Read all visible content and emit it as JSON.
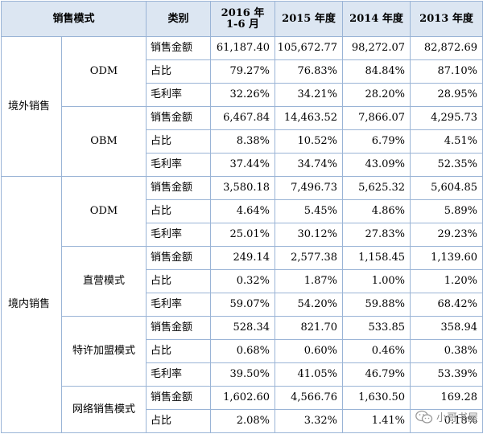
{
  "table": {
    "headers": {
      "mode": "销售模式",
      "category": "类别",
      "col1_line1": "2016 年",
      "col1_line2": "1-6 月",
      "col2": "2015 年度",
      "col3": "2014 年度",
      "col4": "2013 年度"
    },
    "groups": [
      {
        "label": "境外销售",
        "subgroups": [
          {
            "label": "ODM",
            "rows": [
              {
                "category": "销售金额",
                "values": [
                  "61,187.40",
                  "105,672.77",
                  "98,272.07",
                  "82,872.69"
                ]
              },
              {
                "category": "占比",
                "values": [
                  "79.27%",
                  "76.83%",
                  "84.84%",
                  "87.10%"
                ]
              },
              {
                "category": "毛利率",
                "values": [
                  "32.26%",
                  "34.21%",
                  "28.20%",
                  "28.95%"
                ]
              }
            ]
          },
          {
            "label": "OBM",
            "rows": [
              {
                "category": "销售金额",
                "values": [
                  "6,467.84",
                  "14,463.52",
                  "7,866.07",
                  "4,295.73"
                ]
              },
              {
                "category": "占比",
                "values": [
                  "8.38%",
                  "10.52%",
                  "6.79%",
                  "4.51%"
                ]
              },
              {
                "category": "毛利率",
                "values": [
                  "37.44%",
                  "34.74%",
                  "43.09%",
                  "52.35%"
                ]
              }
            ]
          }
        ]
      },
      {
        "label": "境内销售",
        "subgroups": [
          {
            "label": "ODM",
            "rows": [
              {
                "category": "销售金额",
                "values": [
                  "3,580.18",
                  "7,496.73",
                  "5,625.32",
                  "5,604.85"
                ]
              },
              {
                "category": "占比",
                "values": [
                  "4.64%",
                  "5.45%",
                  "4.86%",
                  "5.89%"
                ]
              },
              {
                "category": "毛利率",
                "values": [
                  "25.01%",
                  "30.12%",
                  "27.83%",
                  "29.23%"
                ]
              }
            ]
          },
          {
            "label": "直营模式",
            "rows": [
              {
                "category": "销售金额",
                "values": [
                  "249.14",
                  "2,577.38",
                  "1,158.45",
                  "1,139.60"
                ]
              },
              {
                "category": "占比",
                "values": [
                  "0.32%",
                  "1.87%",
                  "1.00%",
                  "1.20%"
                ]
              },
              {
                "category": "毛利率",
                "values": [
                  "59.07%",
                  "54.20%",
                  "59.88%",
                  "68.42%"
                ]
              }
            ]
          },
          {
            "label": "特许加盟模式",
            "rows": [
              {
                "category": "销售金额",
                "values": [
                  "528.34",
                  "821.70",
                  "533.85",
                  "358.94"
                ]
              },
              {
                "category": "占比",
                "values": [
                  "0.68%",
                  "0.60%",
                  "0.46%",
                  "0.38%"
                ]
              },
              {
                "category": "毛利率",
                "values": [
                  "39.50%",
                  "41.05%",
                  "46.79%",
                  "53.39%"
                ]
              }
            ]
          },
          {
            "label": "网络销售模式",
            "rows": [
              {
                "category": "销售金额",
                "values": [
                  "1,602.60",
                  "4,566.76",
                  "1,630.50",
                  "169.28"
                ]
              },
              {
                "category": "占比",
                "values": [
                  "2.08%",
                  "3.32%",
                  "1.41%",
                  "0.18%"
                ]
              }
            ]
          }
        ]
      }
    ]
  },
  "watermark": {
    "text": "小哥书屋",
    "icon": "wechat-icon"
  },
  "colors": {
    "header_bg": "#dce6f2",
    "border": "#9ab4d6"
  }
}
